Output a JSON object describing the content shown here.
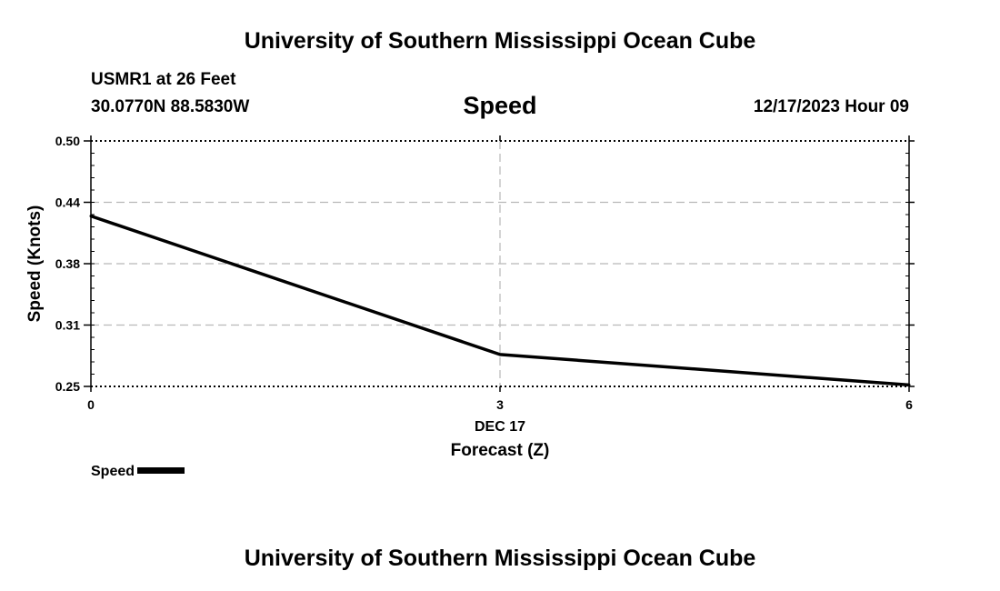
{
  "header": {
    "title": "University of Southern Mississippi Ocean Cube",
    "station": "USMR1 at 26 Feet",
    "coordinates": "30.0770N  88.5830W",
    "variable": "Speed",
    "datetime": "12/17/2023 Hour 09"
  },
  "footer": {
    "title": "University of Southern Mississippi Ocean Cube"
  },
  "legend": {
    "label": "Speed"
  },
  "chart_data": {
    "type": "line",
    "title": "Speed",
    "xlabel": "Forecast (Z)",
    "ylabel": "Speed (Knots)",
    "x_date_label": "DEC 17",
    "x": [
      0,
      3,
      6
    ],
    "series": [
      {
        "name": "Speed",
        "values": [
          0.4235,
          0.2825,
          0.2515
        ]
      }
    ],
    "xlim": [
      0,
      6
    ],
    "ylim": [
      0.25,
      0.5
    ],
    "x_ticks": [
      0,
      3,
      6
    ],
    "x_tick_labels": [
      "0",
      "3",
      "6"
    ],
    "y_ticks": [
      0.25,
      0.3125,
      0.375,
      0.4375,
      0.5
    ],
    "y_tick_labels": [
      "0.25",
      "0.31",
      "0.38",
      "0.44",
      "0.50"
    ],
    "grid": true,
    "legend_position": "bottom-left",
    "colors": {
      "line": "#000000",
      "grid": "#b8b8b8",
      "frame": "#000000"
    }
  }
}
